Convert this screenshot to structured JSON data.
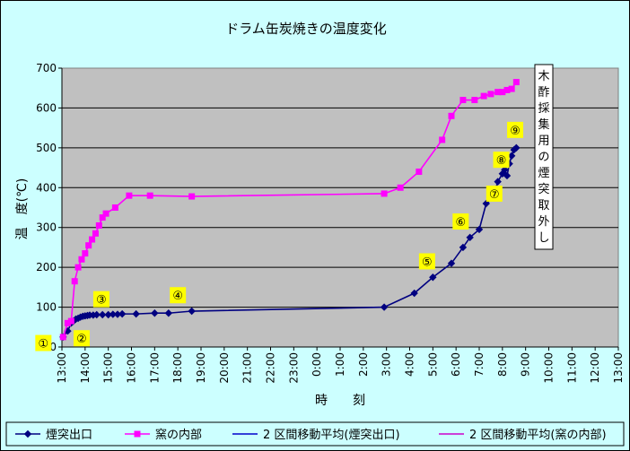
{
  "chart_data": {
    "type": "line",
    "title": "ドラム缶炭焼きの温度変化",
    "ylabel": "温　度(℃)",
    "xlabel": "時　　刻",
    "ylim": [
      0,
      700
    ],
    "yticks": [
      "0",
      "100",
      "200",
      "300",
      "400",
      "500",
      "600",
      "700"
    ],
    "grid": true,
    "legend_position": "bottom",
    "x_tick_labels": [
      "13:00",
      "14:00",
      "15:00",
      "16:00",
      "17:00",
      "18:00",
      "19:00",
      "20:00",
      "21:00",
      "22:00",
      "23:00",
      "0:00",
      "1:00",
      "2:00",
      "3:00",
      "4:00",
      "5:00",
      "6:00",
      "7:00",
      "8:00",
      "9:00",
      "10:00",
      "11:00",
      "12:00",
      "13:00"
    ],
    "x_tick_hours": [
      0,
      1,
      2,
      3,
      4,
      5,
      6,
      7,
      8,
      9,
      10,
      11,
      12,
      13,
      14,
      15,
      16,
      17,
      18,
      19,
      20,
      21,
      22,
      23,
      24
    ],
    "series": [
      {
        "name": "煙突出口",
        "color": "#000080",
        "marker": "diamond",
        "x": [
          0.05,
          0.25,
          0.4,
          0.5,
          0.6,
          0.7,
          0.8,
          0.9,
          1.0,
          1.1,
          1.2,
          1.35,
          1.5,
          1.75,
          2.0,
          2.2,
          2.4,
          2.6,
          3.2,
          4.0,
          4.6,
          5.6,
          13.9,
          15.2,
          16.0,
          16.8,
          17.3,
          17.6,
          18.0,
          18.3,
          18.6,
          18.8,
          19.0,
          19.1,
          19.2,
          19.3,
          19.4,
          19.5,
          19.6
        ],
        "y": [
          25,
          40,
          60,
          65,
          70,
          72,
          75,
          77,
          78,
          79,
          80,
          80,
          81,
          81,
          81,
          82,
          82,
          83,
          83,
          85,
          85,
          90,
          100,
          135,
          175,
          210,
          250,
          275,
          295,
          360,
          375,
          415,
          435,
          445,
          430,
          460,
          480,
          495,
          500
        ]
      },
      {
        "name": "窯の内部",
        "color": "#ff00ff",
        "marker": "square",
        "x": [
          0.05,
          0.25,
          0.4,
          0.55,
          0.7,
          0.85,
          1.0,
          1.15,
          1.3,
          1.45,
          1.6,
          1.75,
          1.9,
          2.3,
          2.9,
          3.8,
          5.6,
          13.9,
          14.6,
          15.4,
          16.4,
          16.8,
          17.3,
          17.8,
          18.2,
          18.5,
          18.8,
          19.0,
          19.2,
          19.4,
          19.6
        ],
        "y": [
          25,
          60,
          65,
          165,
          200,
          220,
          235,
          255,
          270,
          285,
          305,
          325,
          335,
          350,
          380,
          380,
          378,
          385,
          400,
          440,
          520,
          580,
          620,
          620,
          630,
          635,
          640,
          640,
          645,
          648,
          665
        ]
      }
    ],
    "legend": [
      {
        "label": "煙突出口",
        "color": "#000080",
        "marker": "diamond"
      },
      {
        "label": "窯の内部",
        "color": "#ff00ff",
        "marker": "square"
      },
      {
        "label": "2 区間移動平均(煙突出口)",
        "color": "#0000cc",
        "marker": "none"
      },
      {
        "label": "2 区間移動平均(窯の内部)",
        "color": "#cc00cc",
        "marker": "none"
      }
    ],
    "annotation_vertical": "木酢採集用の煙突取外し",
    "badges": [
      {
        "label": "①",
        "x": -0.8,
        "y": 10
      },
      {
        "label": "②",
        "x": 0.85,
        "y": 22
      },
      {
        "label": "③",
        "x": 1.7,
        "y": 120
      },
      {
        "label": "④",
        "x": 5.0,
        "y": 130
      },
      {
        "label": "⑤",
        "x": 15.75,
        "y": 215
      },
      {
        "label": "⑥",
        "x": 17.2,
        "y": 315
      },
      {
        "label": "⑦",
        "x": 18.65,
        "y": 385
      },
      {
        "label": "⑧",
        "x": 18.95,
        "y": 470
      },
      {
        "label": "⑨",
        "x": 19.55,
        "y": 545
      }
    ]
  }
}
